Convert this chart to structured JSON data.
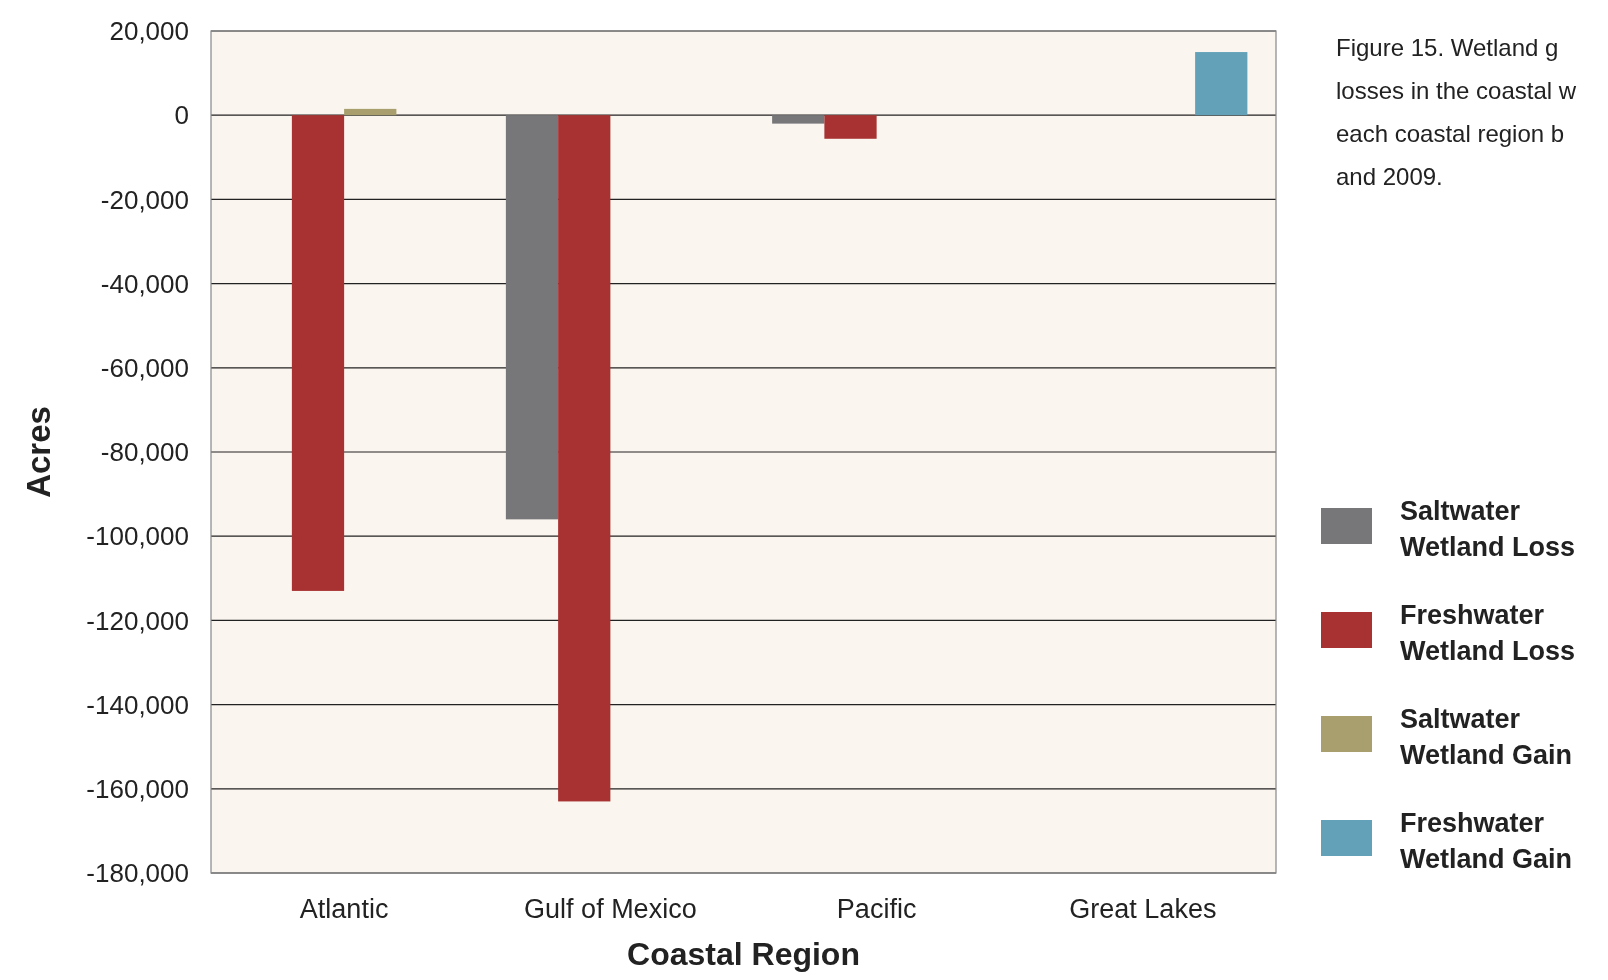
{
  "chart_data": {
    "type": "bar",
    "xlabel": "Coastal Region",
    "ylabel": "Acres",
    "categories": [
      "Atlantic",
      "Gulf of Mexico",
      "Pacific",
      "Great Lakes"
    ],
    "series": [
      {
        "name": "Saltwater Wetland Loss",
        "color": "#77777a",
        "values": [
          null,
          -96000,
          -2000,
          null
        ]
      },
      {
        "name": "Freshwater Wetland Loss",
        "color": "#a83232",
        "values": [
          -113000,
          -163000,
          -5600,
          null
        ]
      },
      {
        "name": "Saltwater Wetland Gain",
        "color": "#a89e6e",
        "values": [
          1500,
          null,
          null,
          null
        ]
      },
      {
        "name": "Freshwater Wetland Gain",
        "color": "#62a1b8",
        "values": [
          null,
          null,
          null,
          15000
        ]
      }
    ],
    "ylim": [
      -180000,
      20000
    ],
    "yticks": [
      {
        "value": 20000,
        "label": "20,000"
      },
      0,
      {
        "value": -20000,
        "label": "-20,000"
      },
      {
        "value": -40000,
        "label": "-40,000"
      },
      {
        "value": -60000,
        "label": "-60,000"
      },
      {
        "value": -80000,
        "label": "-80,000"
      },
      {
        "value": -100000,
        "label": "-100,000"
      },
      {
        "value": -120000,
        "label": "-120,000"
      },
      {
        "value": -140000,
        "label": "-140,000"
      },
      {
        "value": -160000,
        "label": "-160,000"
      },
      {
        "value": -180000,
        "label": "-180,000"
      }
    ],
    "grid": "y",
    "legend": "right",
    "annotations": [
      "Figure 15.    Wetland g\nlosses in the coastal w\neach coastal region b\nand 2009."
    ]
  }
}
